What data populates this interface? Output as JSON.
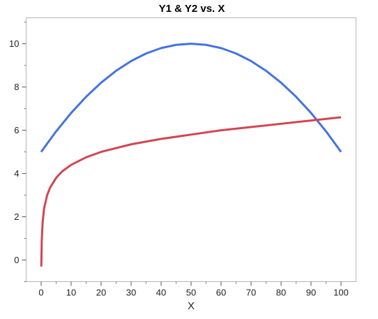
{
  "chart_data": {
    "type": "line",
    "title": "Y1 & Y2 vs. X",
    "xlabel": "X",
    "ylabel": "",
    "xlim": [
      -5,
      105
    ],
    "ylim": [
      -1.0,
      11.2
    ],
    "xticks": [
      0,
      10,
      20,
      30,
      40,
      50,
      60,
      70,
      80,
      90,
      100
    ],
    "yticks": [
      0,
      2,
      4,
      6,
      8,
      10
    ],
    "grid": false,
    "series": [
      {
        "color": "#4472e0",
        "x": [
          0,
          5,
          10,
          15,
          20,
          25,
          30,
          35,
          40,
          45,
          50,
          55,
          60,
          65,
          70,
          75,
          80,
          85,
          90,
          95,
          100
        ],
        "y": [
          5.0,
          5.95,
          6.8,
          7.55,
          8.2,
          8.75,
          9.2,
          9.55,
          9.8,
          9.95,
          10.0,
          9.95,
          9.8,
          9.55,
          9.2,
          8.75,
          8.2,
          7.55,
          6.8,
          5.95,
          5.0
        ]
      },
      {
        "color": "#d24552",
        "x": [
          0.05,
          0.2,
          0.5,
          1,
          2,
          3,
          5,
          7,
          10,
          15,
          20,
          30,
          40,
          50,
          60,
          70,
          80,
          90,
          100
        ],
        "y": [
          -0.3,
          0.9,
          1.75,
          2.4,
          3.0,
          3.35,
          3.8,
          4.1,
          4.4,
          4.75,
          5.0,
          5.35,
          5.6,
          5.8,
          6.0,
          6.15,
          6.3,
          6.45,
          6.6
        ]
      }
    ]
  }
}
